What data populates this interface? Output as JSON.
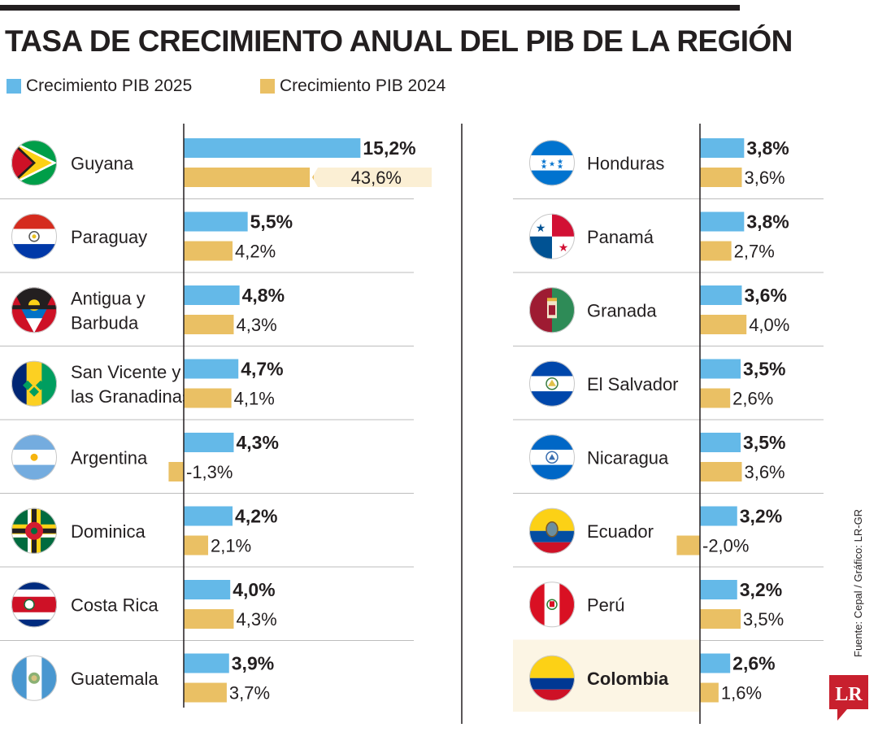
{
  "title": "TASA DE CRECIMIENTO ANUAL DEL PIB DE LA REGIÓN",
  "legend": {
    "series_2025": "Crecimiento PIB 2025",
    "series_2024": "Crecimiento PIB 2024"
  },
  "colors": {
    "series_2025": "#64b9e8",
    "series_2024": "#eac064",
    "highlight": "#fcf5e4",
    "text": "#231f20",
    "logo": "#c8202e"
  },
  "source": "Fuente: Cepal / Gráfico: LR-GR",
  "logo_text": "LR",
  "chart_data": {
    "type": "bar",
    "orientation": "horizontal",
    "grouped": true,
    "title": "TASA DE CRECIMIENTO ANUAL DEL PIB DE LA REGIÓN",
    "panels": [
      {
        "categories": [
          "Guyana",
          "Paraguay",
          "Antigua y Barbuda",
          "San Vicente y las Granadinas",
          "Argentina",
          "Dominica",
          "Costa Rica",
          "Guatemala"
        ],
        "category_lines": [
          [
            "Guyana"
          ],
          [
            "Paraguay"
          ],
          [
            "Antigua y",
            "Barbuda"
          ],
          [
            "San Vicente y",
            "las Granadinas"
          ],
          [
            "Argentina"
          ],
          [
            "Dominica"
          ],
          [
            "Costa Rica"
          ],
          [
            "Guatemala"
          ]
        ],
        "flag_icons": [
          "guyana-flag-icon",
          "paraguay-flag-icon",
          "antigua-barbuda-flag-icon",
          "san-vicente-flag-icon",
          "argentina-flag-icon",
          "dominica-flag-icon",
          "costa-rica-flag-icon",
          "guatemala-flag-icon"
        ],
        "series": [
          {
            "name": "Crecimiento PIB 2025",
            "values": [
              15.2,
              5.5,
              4.8,
              4.7,
              4.3,
              4.2,
              4.0,
              3.9
            ],
            "labels": [
              "15,2%",
              "5,5%",
              "4,8%",
              "4,7%",
              "4,3%",
              "4,2%",
              "4,0%",
              "3,9%"
            ]
          },
          {
            "name": "Crecimiento PIB 2024",
            "values": [
              43.6,
              4.2,
              4.3,
              4.1,
              -1.3,
              2.1,
              4.3,
              3.7
            ],
            "labels": [
              "43,6%",
              "4,2%",
              "4,3%",
              "4,1%",
              "-1,3%",
              "2,1%",
              "4,3%",
              "3,7%"
            ]
          }
        ],
        "truncated_bar": "Guyana 2024"
      },
      {
        "categories": [
          "Honduras",
          "Panamá",
          "Granada",
          "El Salvador",
          "Nicaragua",
          "Ecuador",
          "Perú",
          "Colombia"
        ],
        "category_lines": [
          [
            "Honduras"
          ],
          [
            "Panamá"
          ],
          [
            "Granada"
          ],
          [
            "El Salvador"
          ],
          [
            "Nicaragua"
          ],
          [
            "Ecuador"
          ],
          [
            "Perú"
          ],
          [
            "Colombia"
          ]
        ],
        "flag_icons": [
          "honduras-flag-icon",
          "panama-flag-icon",
          "granada-flag-icon",
          "el-salvador-flag-icon",
          "nicaragua-flag-icon",
          "ecuador-flag-icon",
          "peru-flag-icon",
          "colombia-flag-icon"
        ],
        "series": [
          {
            "name": "Crecimiento PIB 2025",
            "values": [
              3.8,
              3.8,
              3.6,
              3.5,
              3.5,
              3.2,
              3.2,
              2.6
            ],
            "labels": [
              "3,8%",
              "3,8%",
              "3,6%",
              "3,5%",
              "3,5%",
              "3,2%",
              "3,2%",
              "2,6%"
            ]
          },
          {
            "name": "Crecimiento PIB 2024",
            "values": [
              3.6,
              2.7,
              4.0,
              2.6,
              3.6,
              -2.0,
              3.5,
              1.6
            ],
            "labels": [
              "3,6%",
              "2,7%",
              "4,0%",
              "2,6%",
              "3,6%",
              "-2,0%",
              "3,5%",
              "1,6%"
            ]
          }
        ],
        "highlighted_category": "Colombia"
      }
    ],
    "grid": false,
    "legend_position": "top-left"
  }
}
